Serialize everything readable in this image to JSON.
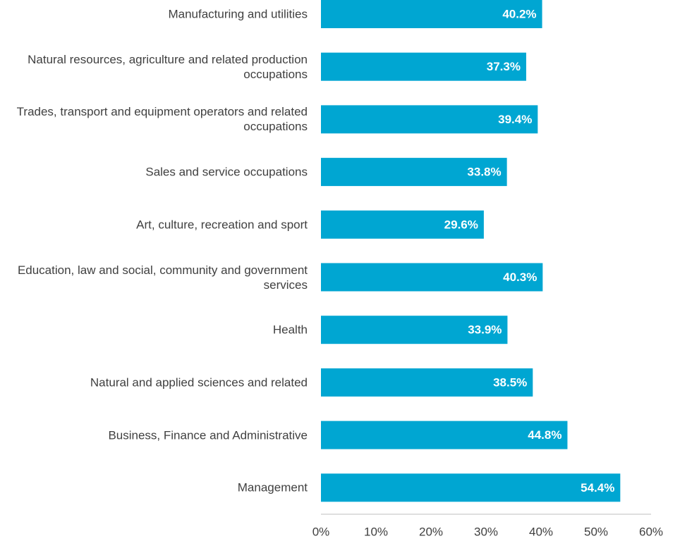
{
  "chart_data": {
    "type": "bar",
    "orientation": "horizontal",
    "categories": [
      "Manufacturing and utilities",
      "Natural resources, agriculture and related production occupations",
      "Trades, transport and equipment operators and related occupations",
      "Sales and service occupations",
      "Art, culture, recreation and sport",
      "Education, law and social, community and government services",
      "Health",
      "Natural and applied sciences and related",
      "Business, Finance and Administrative",
      "Management"
    ],
    "values": [
      40.2,
      37.3,
      39.4,
      33.8,
      29.6,
      40.3,
      33.9,
      38.5,
      44.8,
      54.4
    ],
    "value_labels": [
      "40.2%",
      "37.3%",
      "39.4%",
      "33.8%",
      "29.6%",
      "40.3%",
      "33.9%",
      "38.5%",
      "44.8%",
      "54.4%"
    ],
    "color": "#00a6d2",
    "xlim": [
      0,
      60
    ],
    "xticks": [
      {
        "value": 0,
        "label": "0%"
      },
      {
        "value": 10,
        "label": "10%"
      },
      {
        "value": 20,
        "label": "20%"
      },
      {
        "value": 30,
        "label": "30%"
      },
      {
        "value": 40,
        "label": "40%"
      },
      {
        "value": 50,
        "label": "50%"
      },
      {
        "value": 60,
        "label": "60%"
      }
    ],
    "grid": false
  }
}
